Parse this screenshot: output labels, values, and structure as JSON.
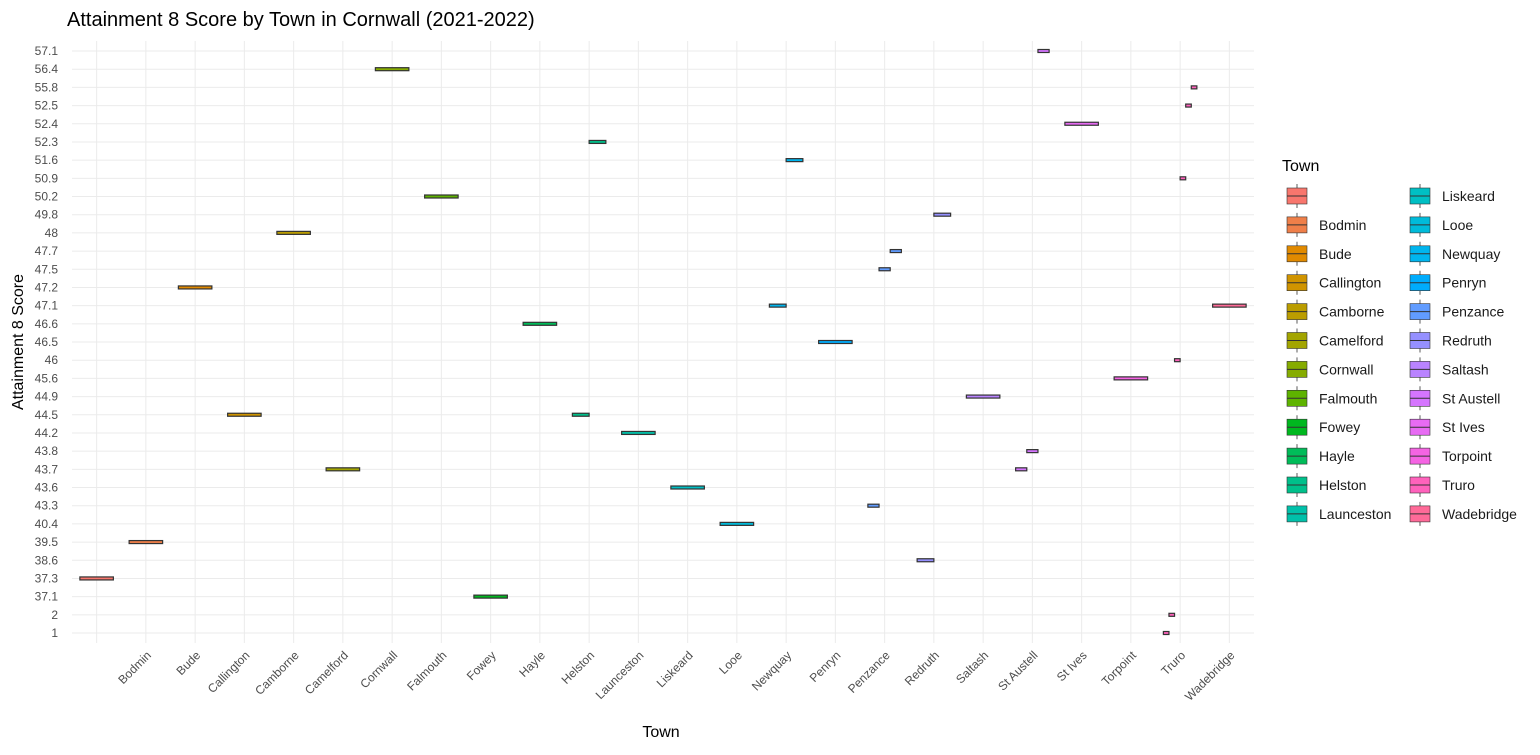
{
  "chart_data": {
    "type": "boxplot",
    "title": "Attainment 8 Score by Town in Cornwall (2021-2022)",
    "x_label": "Town",
    "y_label": "Attainment 8 Score",
    "legend_title": "Town",
    "categories": [
      null,
      "Bodmin",
      "Bude",
      "Callington",
      "Camborne",
      "Camelford",
      "Cornwall",
      "Falmouth",
      "Fowey",
      "Hayle",
      "Helston",
      "Launceston",
      "Liskeard",
      "Looe",
      "Newquay",
      "Penryn",
      "Penzance",
      "Redruth",
      "Saltash",
      "St Austell",
      "St Ives",
      "Torpoint",
      "Truro",
      "Wadebridge"
    ],
    "yticks": [
      1,
      2,
      37.1,
      37.3,
      38.6,
      39.5,
      40.4,
      43.3,
      43.6,
      43.7,
      43.8,
      44.2,
      44.5,
      44.9,
      45.6,
      46,
      46.5,
      46.6,
      47.1,
      47.2,
      47.5,
      47.7,
      48,
      49.8,
      50.2,
      50.9,
      51.6,
      52.3,
      52.4,
      52.5,
      55.8,
      56.4,
      57.1
    ],
    "grid": true,
    "legend_position": "right",
    "series": [
      {
        "name": null,
        "color": "#F8766D",
        "values": [
          37.3
        ]
      },
      {
        "name": "Bodmin",
        "color": "#EF7F49",
        "values": [
          39.5
        ]
      },
      {
        "name": "Bude",
        "color": "#E18A00",
        "values": [
          47.2
        ]
      },
      {
        "name": "Callington",
        "color": "#D09400",
        "values": [
          44.5
        ]
      },
      {
        "name": "Camborne",
        "color": "#BB9D00",
        "values": [
          48
        ]
      },
      {
        "name": "Camelford",
        "color": "#A3A500",
        "values": [
          43.7
        ]
      },
      {
        "name": "Cornwall",
        "color": "#86AC00",
        "values": [
          56.4
        ]
      },
      {
        "name": "Falmouth",
        "color": "#5EB300",
        "values": [
          50.2
        ]
      },
      {
        "name": "Fowey",
        "color": "#00B81F",
        "values": [
          37.1
        ]
      },
      {
        "name": "Hayle",
        "color": "#00BC59",
        "values": [
          46.6
        ]
      },
      {
        "name": "Helston",
        "color": "#00C08B",
        "values": [
          44.5,
          52.3
        ]
      },
      {
        "name": "Launceston",
        "color": "#00C1AA",
        "values": [
          44.2
        ]
      },
      {
        "name": "Liskeard",
        "color": "#00BFC4",
        "values": [
          43.6
        ]
      },
      {
        "name": "Looe",
        "color": "#00BBDA",
        "values": [
          40.4
        ]
      },
      {
        "name": "Newquay",
        "color": "#00B5EE",
        "values": [
          47.1,
          51.6
        ]
      },
      {
        "name": "Penryn",
        "color": "#00ACFC",
        "values": [
          46.5
        ]
      },
      {
        "name": "Penzance",
        "color": "#619CFF",
        "values": [
          43.3,
          47.5,
          47.7
        ]
      },
      {
        "name": "Redruth",
        "color": "#9590FF",
        "values": [
          38.6,
          49.8
        ]
      },
      {
        "name": "Saltash",
        "color": "#B983FF",
        "values": [
          44.9
        ]
      },
      {
        "name": "St Austell",
        "color": "#D575FE",
        "values": [
          43.7,
          43.8,
          57.1
        ]
      },
      {
        "name": "St Ives",
        "color": "#E76BF3",
        "values": [
          52.4
        ]
      },
      {
        "name": "Torpoint",
        "color": "#F564E3",
        "values": [
          45.6
        ]
      },
      {
        "name": "Truro",
        "color": "#FF62BC",
        "values": [
          1,
          2,
          46,
          50.9,
          52.5,
          55.8
        ]
      },
      {
        "name": "Wadebridge",
        "color": "#FF6A98",
        "values": [
          47.1
        ]
      }
    ]
  }
}
